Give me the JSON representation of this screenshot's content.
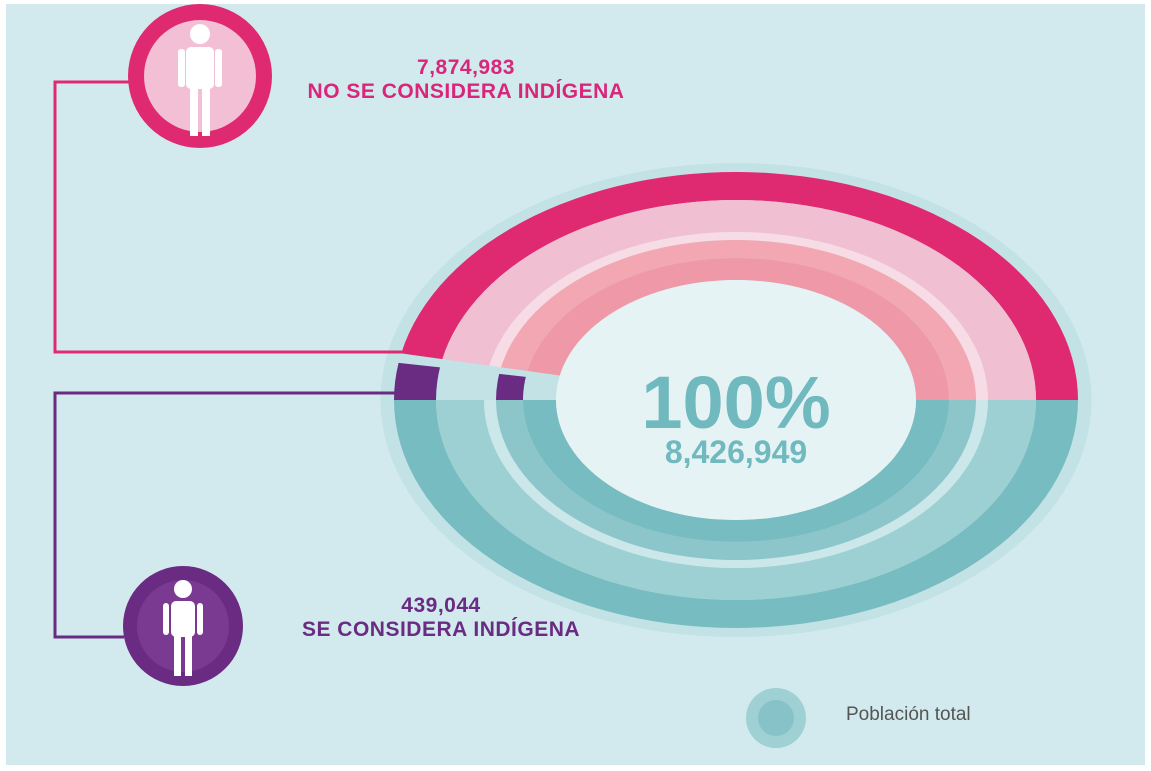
{
  "chart_data": {
    "type": "radial",
    "categories": [
      "NO SE CONSIDERA INDÍGENA",
      "SE CONSIDERA INDÍGENA"
    ],
    "values": [
      7874983,
      439044
    ],
    "value_labels": [
      "7,874,983",
      "439,044"
    ],
    "colors": [
      "#df2a72",
      "#6a2b82"
    ],
    "center": {
      "value": 100,
      "label": "100%"
    },
    "total": {
      "value": 8426949,
      "label": "8,426,949"
    },
    "total_color": "#77bcc1",
    "legend": "Población total"
  }
}
